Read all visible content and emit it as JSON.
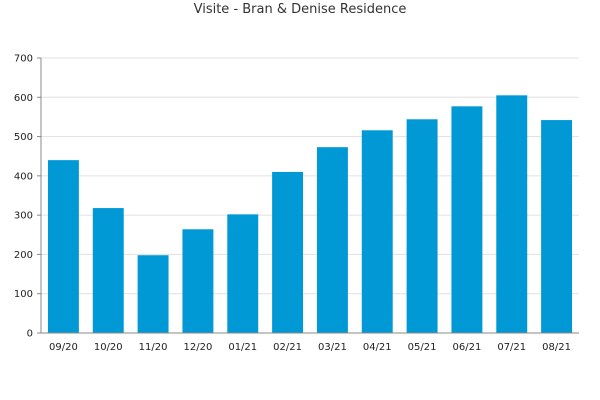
{
  "chart_data": {
    "type": "bar",
    "title": "Visite - Bran & Denise Residence",
    "categories": [
      "09/20",
      "10/20",
      "11/20",
      "12/20",
      "01/21",
      "02/21",
      "03/21",
      "04/21",
      "05/21",
      "06/21",
      "07/21",
      "08/21"
    ],
    "values": [
      440,
      318,
      198,
      264,
      302,
      410,
      473,
      516,
      544,
      577,
      605,
      542
    ],
    "y_ticks": [
      "0",
      "100",
      "200",
      "300",
      "400",
      "500",
      "600",
      "700"
    ],
    "ylim": [
      0,
      700
    ],
    "grid": true,
    "bar_color": "#0099d6",
    "grid_color": "#e0e0e0",
    "axis_color": "#888888"
  }
}
